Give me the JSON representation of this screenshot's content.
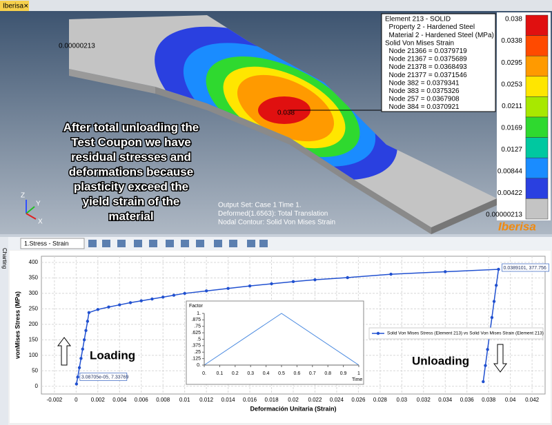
{
  "window": {
    "tab": "Iberisa",
    "side_label": "Charting",
    "dropdown": "1.Stress - Strain"
  },
  "viewport": {
    "info_box": [
      "Element 213 - SOLID",
      "  Property 2 - Hardened Steel",
      "  Material 2 - Hardened Steel (MPa)",
      "Solid Von Mises Strain",
      "  Node 21366 = 0.0379719",
      "  Node 21367 = 0.0375689",
      "  Node 21378 = 0.0368493",
      "  Node 21377 = 0.0371546",
      "  Node 382 = 0.0379341",
      "  Node 383 = 0.0375326",
      "  Node 257 = 0.0367908",
      "  Node 384 = 0.0370921"
    ],
    "node_label": "0.00000213",
    "probe_label": "0.038",
    "annotation": [
      "After total unloading the",
      "Test Coupon we have",
      "residual stresses and",
      "deformations because",
      "plasticity exceed the",
      "yield strain of the",
      "material"
    ],
    "output_lines": [
      "Output Set: Case 1 Time 1.",
      "Deformed(1.6563): Total Translation",
      "Nodal Contour: Solid Von Mises Strain"
    ],
    "axes": [
      "Z",
      "Y",
      "X"
    ],
    "legend": {
      "labels": [
        "0.038",
        "0.0338",
        "0.0295",
        "0.0253",
        "0.0211",
        "0.0169",
        "0.0127",
        "0.00844",
        "0.00422",
        "0.00000213"
      ],
      "colors": [
        "#e01010",
        "#ff4a00",
        "#ff9a00",
        "#ffe600",
        "#a8e800",
        "#2fd92f",
        "#00c8a0",
        "#1a8cff",
        "#2a40e0",
        "#c4c4c4"
      ]
    },
    "logo": "Iberisa"
  },
  "chart_data": [
    {
      "type": "line",
      "xlabel": "Deformación Unitaria (Strain)",
      "ylabel": "vonMises Stress (MPa)",
      "x": [
        3.08705e-05,
        0.00015,
        0.0003,
        0.00045,
        0.0006,
        0.00075,
        0.0009,
        0.00105,
        0.00118,
        0.002,
        0.003,
        0.004,
        0.005,
        0.006,
        0.007,
        0.008,
        0.009,
        0.01,
        0.012,
        0.014,
        0.016,
        0.018,
        0.02,
        0.022,
        0.025,
        0.029,
        0.034,
        0.0389101,
        0.0387,
        0.0385,
        0.0383,
        0.0381,
        0.0379,
        0.0377,
        0.0375
      ],
      "series": [
        {
          "name": "Solid Von Mises Stress (Element 213) vs Solid Von Mises Strain (Element 213)",
          "color": "#2050d0",
          "values": [
            7.33769,
            30,
            60,
            90,
            120,
            150,
            180,
            210,
            238,
            248,
            256,
            263,
            270,
            276,
            282,
            288,
            294,
            300,
            308,
            316,
            324,
            331,
            338,
            344,
            351,
            362,
            370,
            377.756,
            326,
            274,
            222,
            170,
            119,
            67,
            15
          ]
        }
      ],
      "xlim": [
        -0.0032,
        0.0432
      ],
      "xticks": [
        -0.002,
        0,
        0.002,
        0.004,
        0.006,
        0.008,
        0.01,
        0.012,
        0.014,
        0.016,
        0.018,
        0.02,
        0.022,
        0.024,
        0.026,
        0.028,
        0.03,
        0.032,
        0.034,
        0.036,
        0.038,
        0.04,
        0.042
      ],
      "ylim": [
        -25,
        420
      ],
      "yticks": [
        0,
        50,
        100,
        150,
        200,
        250,
        300,
        350,
        400
      ],
      "grid": true,
      "annotations": [
        {
          "text": "3.08705e-05, 7.33769",
          "x": 3.08705e-05,
          "y": 7.33769
        },
        {
          "text": "0.0389101, 377.756",
          "x": 0.0389101,
          "y": 377.756
        }
      ],
      "labels": [
        "Loading",
        "Unloading"
      ]
    },
    {
      "type": "line",
      "ylabel": "Factor",
      "xlabel": "Time",
      "x": [
        0,
        0.5,
        1
      ],
      "series": [
        {
          "color": "#4a8ae0",
          "values": [
            0,
            1,
            0
          ]
        }
      ],
      "xlim": [
        0,
        1
      ],
      "xticks": [
        {
          "value": 0,
          "label": "0."
        },
        0.1,
        0.2,
        0.3,
        0.4,
        0.5,
        0.6,
        0.7,
        0.8,
        0.9,
        1
      ],
      "ylim": [
        0,
        1
      ],
      "yticks": [
        {
          "value": 0,
          "label": "0."
        },
        {
          "value": 0.125,
          "label": ".125"
        },
        {
          "value": 0.25,
          "label": ".25"
        },
        {
          "value": 0.375,
          "label": ".375"
        },
        {
          "value": 0.5,
          "label": ".5"
        },
        {
          "value": 0.625,
          "label": ".625"
        },
        {
          "value": 0.75,
          "label": ".75"
        },
        {
          "value": 0.875,
          "label": ".875"
        },
        {
          "value": 1,
          "label": "1."
        }
      ],
      "grid": false
    }
  ]
}
